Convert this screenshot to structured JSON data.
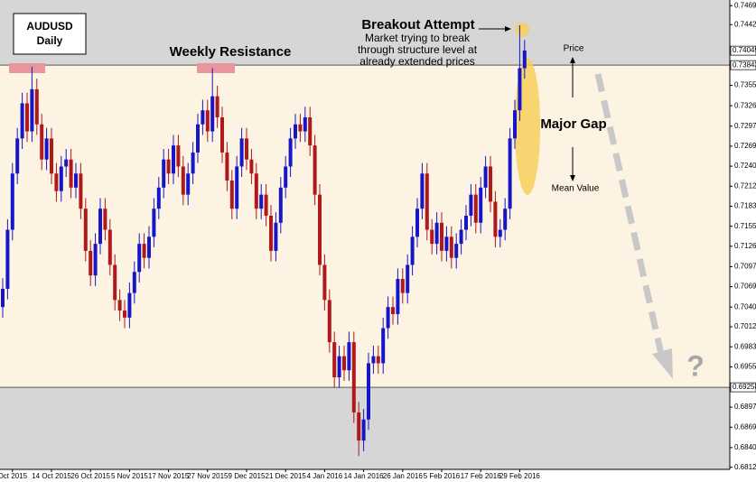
{
  "chart_data": {
    "type": "candlestick",
    "symbol": "AUDUSD",
    "timeframe": "Daily",
    "categories": [
      null,
      null,
      "Oct 2015",
      null,
      null,
      null,
      null,
      null,
      null,
      null,
      "14 Oct 2015",
      null,
      null,
      null,
      null,
      null,
      null,
      null,
      "26 Oct 2015",
      null,
      null,
      null,
      null,
      null,
      null,
      null,
      "5 Nov 2015",
      null,
      null,
      null,
      null,
      null,
      null,
      null,
      "17 Nov 2015",
      null,
      null,
      null,
      null,
      null,
      null,
      null,
      "27 Nov 2015",
      null,
      null,
      null,
      null,
      null,
      null,
      null,
      "9 Dec 2015",
      null,
      null,
      null,
      null,
      null,
      null,
      null,
      "21 Dec 2015",
      null,
      null,
      null,
      null,
      null,
      null,
      null,
      "4 Jan 2016",
      null,
      null,
      null,
      null,
      null,
      null,
      null,
      "14 Jan 2016",
      null,
      null,
      null,
      null,
      null,
      null,
      null,
      "26 Jan 2016",
      null,
      null,
      null,
      null,
      null,
      null,
      null,
      "5 Feb 2016",
      null,
      null,
      null,
      null,
      null,
      null,
      null,
      "17 Feb 2016",
      null,
      null,
      null,
      null,
      null,
      null,
      null,
      "29 Feb 2016",
      null
    ],
    "open": [
      0.704,
      0.7066,
      0.715,
      0.723,
      0.728,
      0.733,
      0.729,
      0.735,
      0.73,
      0.725,
      0.728,
      0.723,
      0.7205,
      0.724,
      0.725,
      0.721,
      0.723,
      0.718,
      0.712,
      0.7085,
      0.713,
      0.718,
      0.715,
      0.71,
      0.705,
      0.7035,
      0.7025,
      0.706,
      0.709,
      0.713,
      0.711,
      0.714,
      0.718,
      0.721,
      0.725,
      0.723,
      0.727,
      0.724,
      0.72,
      0.723,
      0.726,
      0.73,
      0.732,
      0.729,
      0.734,
      0.731,
      0.726,
      0.722,
      0.718,
      0.724,
      0.728,
      0.725,
      0.723,
      0.718,
      0.72,
      0.717,
      0.712,
      0.716,
      0.721,
      0.724,
      0.728,
      0.73,
      0.729,
      0.731,
      0.727,
      0.72,
      0.71,
      0.705,
      0.699,
      0.694,
      0.697,
      0.695,
      0.699,
      0.689,
      0.685,
      0.688,
      0.696,
      0.697,
      0.696,
      0.701,
      0.704,
      0.703,
      0.708,
      0.706,
      0.71,
      0.714,
      0.718,
      0.723,
      0.715,
      0.713,
      0.716,
      0.712,
      0.714,
      0.711,
      0.713,
      0.715,
      0.717,
      0.72,
      0.716,
      0.721,
      0.724,
      0.719,
      0.714,
      0.715,
      0.718,
      0.728,
      0.732,
      0.738
    ],
    "high": [
      0.7081,
      0.7165,
      0.7245,
      0.7295,
      0.7345,
      0.7345,
      0.7382,
      0.7365,
      0.7315,
      0.7295,
      0.7295,
      0.7245,
      0.7255,
      0.7265,
      0.7265,
      0.7245,
      0.7245,
      0.7195,
      0.7135,
      0.7145,
      0.7195,
      0.7195,
      0.7165,
      0.7115,
      0.7065,
      0.705,
      0.7075,
      0.7105,
      0.7145,
      0.7145,
      0.7155,
      0.7195,
      0.7225,
      0.7265,
      0.7265,
      0.7285,
      0.7285,
      0.7255,
      0.7245,
      0.7275,
      0.7315,
      0.7335,
      0.7335,
      0.738,
      0.7355,
      0.7325,
      0.7275,
      0.7235,
      0.7255,
      0.7295,
      0.7295,
      0.7265,
      0.7245,
      0.7215,
      0.7215,
      0.7185,
      0.7175,
      0.7225,
      0.7255,
      0.7295,
      0.7315,
      0.7315,
      0.7325,
      0.7325,
      0.7285,
      0.7215,
      0.7115,
      0.7065,
      0.7005,
      0.6985,
      0.6985,
      0.7005,
      0.7005,
      0.6905,
      0.6895,
      0.6975,
      0.6985,
      0.6985,
      0.7025,
      0.7055,
      0.7055,
      0.7095,
      0.7095,
      0.7115,
      0.7155,
      0.7195,
      0.7245,
      0.7245,
      0.7165,
      0.7175,
      0.7175,
      0.7155,
      0.7155,
      0.7145,
      0.7165,
      0.7185,
      0.7215,
      0.7215,
      0.7225,
      0.7255,
      0.7255,
      0.7205,
      0.7165,
      0.7195,
      0.7295,
      0.7335,
      0.7441,
      0.742
    ],
    "low": [
      0.7025,
      0.7051,
      0.7135,
      0.7215,
      0.7265,
      0.7275,
      0.7275,
      0.7285,
      0.7235,
      0.7235,
      0.7215,
      0.719,
      0.719,
      0.7225,
      0.7195,
      0.7195,
      0.7165,
      0.7105,
      0.707,
      0.707,
      0.7115,
      0.7135,
      0.7085,
      0.7035,
      0.702,
      0.701,
      0.701,
      0.7045,
      0.7075,
      0.7095,
      0.7095,
      0.7125,
      0.7165,
      0.7195,
      0.7215,
      0.7215,
      0.7225,
      0.7185,
      0.7185,
      0.7215,
      0.7245,
      0.7285,
      0.7275,
      0.7275,
      0.7295,
      0.7245,
      0.7205,
      0.7165,
      0.7165,
      0.7225,
      0.7235,
      0.7215,
      0.7165,
      0.7165,
      0.7155,
      0.7105,
      0.7105,
      0.7145,
      0.7195,
      0.7225,
      0.7265,
      0.7275,
      0.7275,
      0.7255,
      0.7185,
      0.7085,
      0.7035,
      0.6975,
      0.6925,
      0.6925,
      0.6935,
      0.6935,
      0.6875,
      0.6828,
      0.6835,
      0.6865,
      0.6945,
      0.6945,
      0.6945,
      0.6995,
      0.7015,
      0.7015,
      0.7045,
      0.7045,
      0.7085,
      0.7125,
      0.7165,
      0.7135,
      0.7115,
      0.7115,
      0.7105,
      0.7105,
      0.7095,
      0.7095,
      0.7115,
      0.7135,
      0.7155,
      0.7145,
      0.7145,
      0.7195,
      0.7175,
      0.7125,
      0.7125,
      0.7135,
      0.7165,
      0.7265,
      0.7305,
      0.7365
    ],
    "close": [
      0.7066,
      0.715,
      0.723,
      0.728,
      0.733,
      0.729,
      0.735,
      0.73,
      0.725,
      0.728,
      0.723,
      0.7205,
      0.724,
      0.725,
      0.721,
      0.723,
      0.718,
      0.712,
      0.7085,
      0.713,
      0.718,
      0.715,
      0.71,
      0.705,
      0.7035,
      0.7025,
      0.706,
      0.709,
      0.713,
      0.711,
      0.714,
      0.718,
      0.721,
      0.725,
      0.723,
      0.727,
      0.724,
      0.72,
      0.723,
      0.726,
      0.73,
      0.732,
      0.729,
      0.734,
      0.731,
      0.726,
      0.722,
      0.718,
      0.724,
      0.728,
      0.725,
      0.723,
      0.718,
      0.72,
      0.717,
      0.712,
      0.716,
      0.721,
      0.724,
      0.728,
      0.73,
      0.729,
      0.731,
      0.727,
      0.72,
      0.71,
      0.705,
      0.699,
      0.694,
      0.697,
      0.695,
      0.699,
      0.689,
      0.685,
      0.688,
      0.696,
      0.697,
      0.696,
      0.701,
      0.704,
      0.703,
      0.708,
      0.706,
      0.71,
      0.714,
      0.718,
      0.723,
      0.715,
      0.713,
      0.716,
      0.712,
      0.714,
      0.711,
      0.713,
      0.715,
      0.717,
      0.72,
      0.716,
      0.721,
      0.724,
      0.719,
      0.714,
      0.715,
      0.718,
      0.728,
      0.732,
      0.738,
      0.7405
    ],
    "up_color": "#1616c8",
    "down_color": "#b0181c",
    "ylim": [
      0.6809,
      0.7477
    ],
    "yticks": [
      {
        "value": 0.7469,
        "label": "0.74690"
      },
      {
        "value": 0.7442,
        "label": "0.74420"
      },
      {
        "value": 0.73555,
        "label": "0.73555"
      },
      {
        "value": 0.73265,
        "label": "0.73265"
      },
      {
        "value": 0.72975,
        "label": "0.72975"
      },
      {
        "value": 0.7269,
        "label": "0.72690"
      },
      {
        "value": 0.72405,
        "label": "0.72405"
      },
      {
        "value": 0.7212,
        "label": "0.72120"
      },
      {
        "value": 0.71835,
        "label": "0.71835"
      },
      {
        "value": 0.7155,
        "label": "0.71550"
      },
      {
        "value": 0.71265,
        "label": "0.71265"
      },
      {
        "value": 0.70975,
        "label": "0.70975"
      },
      {
        "value": 0.7069,
        "label": "0.70690"
      },
      {
        "value": 0.704,
        "label": "0.70400"
      },
      {
        "value": 0.7012,
        "label": "0.70120"
      },
      {
        "value": 0.69835,
        "label": "0.69835"
      },
      {
        "value": 0.6955,
        "label": "0.69550"
      },
      {
        "value": 0.68975,
        "label": "0.68975"
      },
      {
        "value": 0.6869,
        "label": "0.68690"
      },
      {
        "value": 0.684,
        "label": "0.68400"
      },
      {
        "value": 0.6812,
        "label": "0.68120"
      }
    ],
    "levels": [
      {
        "value": 0.73843,
        "label": "0.73843"
      },
      {
        "value": 0.69258,
        "label": "0.69258"
      }
    ],
    "current_price": {
      "value": 0.74049,
      "label": "0.74049"
    },
    "annotations": {
      "weekly_resistance": "Weekly Resistance",
      "breakout": "Breakout Attempt",
      "breakout_note": [
        "Market trying to break",
        "through structure level at",
        "already extended prices"
      ],
      "major_gap": "Major Gap",
      "price": "Price",
      "mean_value": "Mean Value",
      "question": "?"
    }
  }
}
